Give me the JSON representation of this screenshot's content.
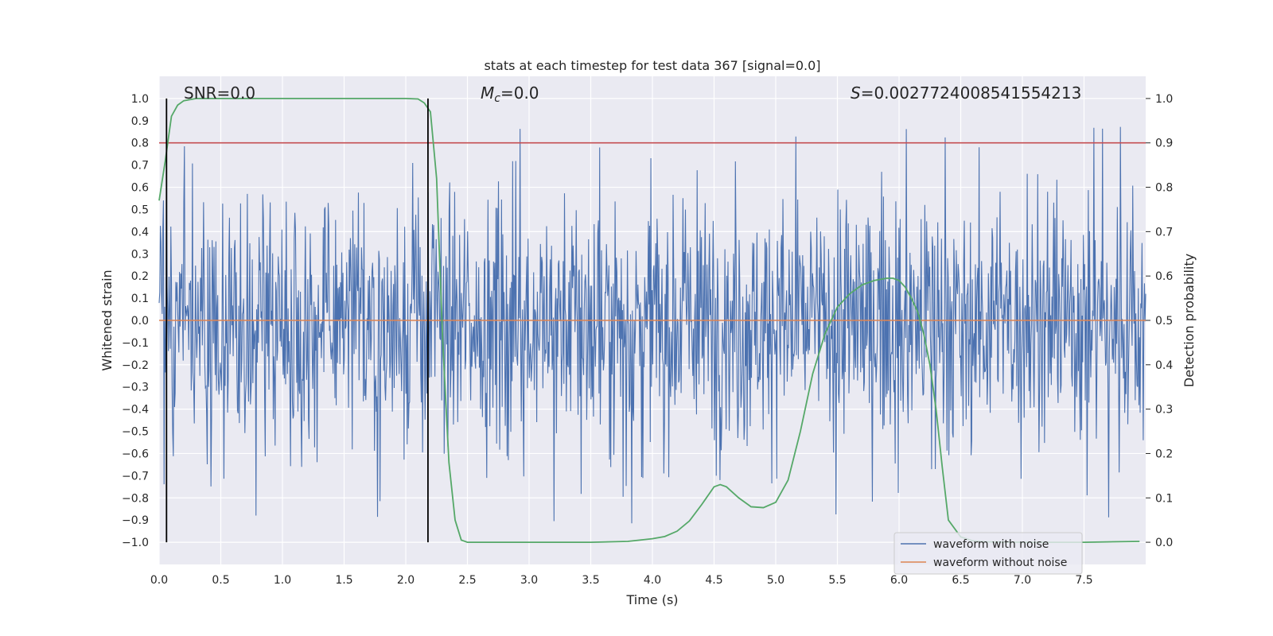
{
  "chart_data": {
    "type": "line",
    "title": "stats at each timestep for test data 367 [signal=0.0]",
    "xlabel": "Time (s)",
    "ylabel": "Whitened strain",
    "y2label": "Detection probability",
    "xlim": [
      0.0,
      8.0
    ],
    "ylim": [
      -1.1,
      1.1
    ],
    "y2lim": [
      -0.05,
      1.05
    ],
    "x_ticks": [
      "0.0",
      "0.5",
      "1.0",
      "1.5",
      "2.0",
      "2.5",
      "3.0",
      "3.5",
      "4.0",
      "4.5",
      "5.0",
      "5.5",
      "6.0",
      "6.5",
      "7.0",
      "7.5"
    ],
    "y_ticks": [
      "1.0",
      "0.9",
      "0.8",
      "0.7",
      "0.6",
      "0.5",
      "0.4",
      "0.3",
      "0.2",
      "0.1",
      "0.0",
      "−0.1",
      "−0.2",
      "−0.3",
      "−0.4",
      "−0.5",
      "−0.6",
      "−0.7",
      "−0.8",
      "−0.9",
      "−1.0"
    ],
    "y2_ticks": [
      "1.0",
      "0.9",
      "0.8",
      "0.7",
      "0.6",
      "0.5",
      "0.4",
      "0.3",
      "0.2",
      "0.1",
      "0.0"
    ],
    "annotations": {
      "snr": "SNR=0.0",
      "mc_symbol": "M",
      "mc_subscript": "c",
      "mc_value": "=0.0",
      "s_symbol": "S",
      "s_value": "=0.0027724008541554213"
    },
    "legend": {
      "position": "lower-right",
      "entries": [
        "waveform with noise",
        "waveform without noise"
      ]
    },
    "vertical_lines_x": [
      0.06,
      2.18
    ],
    "threshold_probability": 0.9,
    "series": [
      {
        "name": "waveform with noise",
        "axis": "left",
        "color": "#4c72b0",
        "description": "whitened noise, amplitude roughly within [-0.95, 0.95]",
        "samples": 1600,
        "peak_max": 0.92,
        "peak_min": -1.0
      },
      {
        "name": "waveform without noise",
        "axis": "left",
        "color": "#dd8452",
        "x": [
          0.0,
          8.0
        ],
        "values": [
          0.0,
          0.0
        ]
      },
      {
        "name": "detection probability",
        "axis": "right",
        "color": "#55a868",
        "x": [
          0.0,
          0.05,
          0.1,
          0.15,
          0.2,
          0.3,
          0.4,
          0.6,
          1.0,
          1.5,
          2.0,
          2.1,
          2.15,
          2.2,
          2.25,
          2.3,
          2.35,
          2.4,
          2.45,
          2.5,
          3.0,
          3.5,
          3.8,
          4.0,
          4.1,
          4.2,
          4.3,
          4.4,
          4.5,
          4.55,
          4.6,
          4.7,
          4.8,
          4.9,
          5.0,
          5.1,
          5.2,
          5.3,
          5.4,
          5.5,
          5.6,
          5.7,
          5.8,
          5.9,
          5.95,
          6.0,
          6.05,
          6.1,
          6.15,
          6.2,
          6.25,
          6.3,
          6.35,
          6.4,
          6.5,
          6.6,
          6.7,
          7.0,
          7.5,
          7.95
        ],
        "values": [
          0.77,
          0.86,
          0.96,
          0.985,
          0.995,
          1.0,
          1.0,
          1.0,
          1.0,
          1.0,
          1.0,
          0.999,
          0.99,
          0.97,
          0.82,
          0.45,
          0.18,
          0.05,
          0.005,
          0.0,
          0.0,
          0.0,
          0.002,
          0.008,
          0.013,
          0.025,
          0.048,
          0.085,
          0.125,
          0.13,
          0.125,
          0.1,
          0.08,
          0.078,
          0.09,
          0.14,
          0.25,
          0.38,
          0.47,
          0.53,
          0.56,
          0.58,
          0.59,
          0.595,
          0.595,
          0.59,
          0.575,
          0.55,
          0.52,
          0.47,
          0.4,
          0.3,
          0.17,
          0.05,
          0.012,
          0.003,
          0.001,
          0.0,
          0.0,
          0.002
        ]
      },
      {
        "name": "threshold",
        "axis": "right",
        "color": "#c44e52",
        "x": [
          0.0,
          8.0
        ],
        "values": [
          0.9,
          0.9
        ]
      }
    ]
  }
}
